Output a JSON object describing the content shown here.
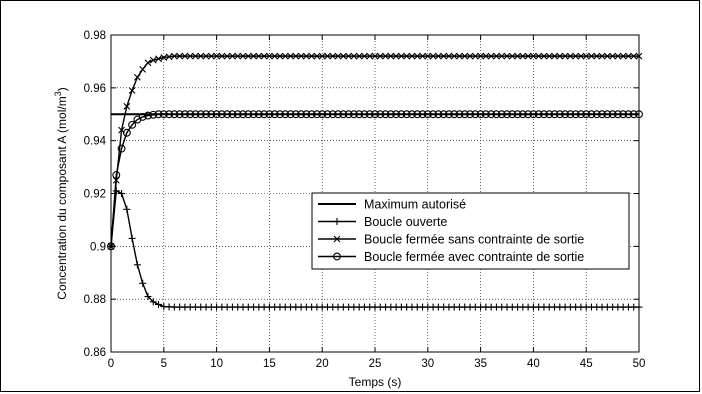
{
  "chart_data": {
    "type": "line",
    "xlabel": "Temps (s)",
    "ylabel": "Concentration du composant A (mol/m",
    "ylabel_sup": "3",
    "ylabel_end": ")",
    "xlim": [
      0,
      50
    ],
    "ylim": [
      0.86,
      0.98
    ],
    "x_ticks": [
      0,
      5,
      10,
      15,
      20,
      25,
      30,
      35,
      40,
      45,
      50
    ],
    "y_ticks": [
      0.86,
      0.88,
      0.9,
      0.92,
      0.94,
      0.96,
      0.98
    ],
    "x_tick_labels": [
      "0",
      "5",
      "10",
      "15",
      "20",
      "25",
      "30",
      "35",
      "40",
      "45",
      "50"
    ],
    "y_tick_labels": [
      "0.86",
      "0.88",
      "0.9",
      "0.92",
      "0.94",
      "0.96",
      "0.98"
    ],
    "grid": true,
    "legend_position": "center-right",
    "series": [
      {
        "name": "Maximum autorisé",
        "marker": "none",
        "x": [
          0,
          50
        ],
        "y": [
          0.95,
          0.95
        ]
      },
      {
        "name": "Boucle ouverte",
        "marker": "plus",
        "x": [
          0,
          0.5,
          1,
          1.5,
          2,
          2.5,
          3,
          3.5,
          4,
          4.5,
          5,
          6,
          8,
          10,
          15,
          20,
          30,
          40,
          50
        ],
        "y": [
          0.9,
          0.921,
          0.92,
          0.914,
          0.903,
          0.893,
          0.886,
          0.881,
          0.879,
          0.878,
          0.8772,
          0.877,
          0.877,
          0.877,
          0.877,
          0.877,
          0.877,
          0.877,
          0.877
        ]
      },
      {
        "name": "Boucle fermée sans contrainte de sortie",
        "marker": "x",
        "x": [
          0,
          0.5,
          1,
          1.5,
          2,
          2.5,
          3,
          3.5,
          4,
          4.5,
          5,
          6,
          7,
          8,
          10,
          15,
          20,
          30,
          40,
          50
        ],
        "y": [
          0.9,
          0.925,
          0.944,
          0.953,
          0.959,
          0.964,
          0.967,
          0.9695,
          0.9705,
          0.971,
          0.9715,
          0.972,
          0.972,
          0.972,
          0.972,
          0.972,
          0.972,
          0.972,
          0.972,
          0.972
        ]
      },
      {
        "name": "Boucle fermée avec contrainte de sortie",
        "marker": "circle",
        "x": [
          0,
          0.5,
          1,
          1.5,
          2,
          2.5,
          3,
          3.5,
          4,
          4.5,
          5,
          6,
          8,
          10,
          15,
          20,
          30,
          40,
          50
        ],
        "y": [
          0.9,
          0.927,
          0.937,
          0.943,
          0.946,
          0.948,
          0.949,
          0.9495,
          0.9498,
          0.95,
          0.95,
          0.95,
          0.95,
          0.95,
          0.95,
          0.95,
          0.95,
          0.95,
          0.95
        ]
      }
    ]
  }
}
